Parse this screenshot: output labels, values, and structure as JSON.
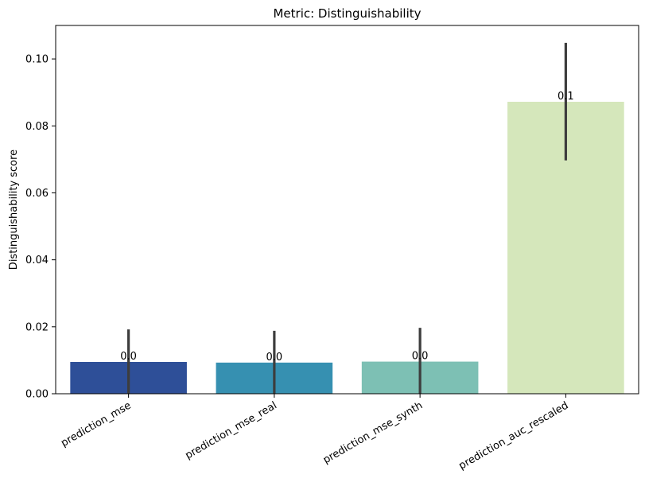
{
  "chart_data": {
    "type": "bar",
    "title": "Metric: Distinguishability",
    "xlabel": "",
    "ylabel": "Distinguishability score",
    "ylim": [
      0,
      0.11
    ],
    "yticks": [
      0.0,
      0.02,
      0.04,
      0.06,
      0.08,
      0.1
    ],
    "ytick_labels": [
      "0.00",
      "0.02",
      "0.04",
      "0.06",
      "0.08",
      "0.10"
    ],
    "categories": [
      "prediction_mse",
      "prediction_mse_real",
      "prediction_mse_synth",
      "prediction_auc_rescaled"
    ],
    "values": [
      0.0095,
      0.0093,
      0.0096,
      0.0872
    ],
    "error_low": [
      0.0,
      0.0,
      0.0,
      0.0697
    ],
    "error_high": [
      0.0192,
      0.0188,
      0.0197,
      0.1048
    ],
    "data_labels": [
      "0.0",
      "0.0",
      "0.0",
      "0.1"
    ],
    "colors": [
      "#2e4f98",
      "#3690b1",
      "#7dc0b4",
      "#d5e7bb"
    ],
    "error_bar_color": "#3d3d3d",
    "grid": false,
    "legend": "none"
  }
}
